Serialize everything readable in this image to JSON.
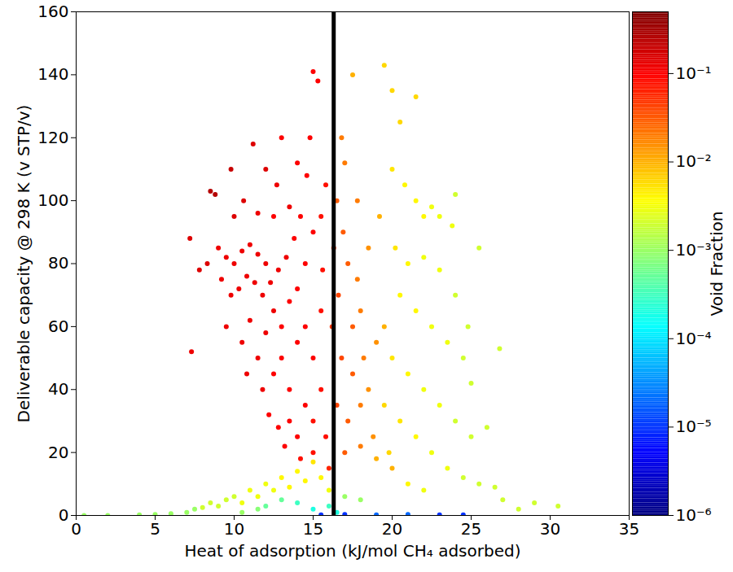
{
  "chart_data": {
    "type": "scatter",
    "x_label": "Heat of adsorption (kJ/mol CH₄ adsorbed)",
    "y_label": "Deliverable capacity @ 298 K (v STP/v)",
    "xlim": [
      0,
      35
    ],
    "xticks": [
      0,
      5,
      10,
      15,
      20,
      25,
      30,
      35
    ],
    "ylim": [
      0,
      160
    ],
    "yticks": [
      0,
      20,
      40,
      60,
      80,
      100,
      120,
      140,
      160
    ],
    "vertical_line": 16.3,
    "x": [
      0.5,
      2,
      4,
      5,
      6,
      7,
      7.5,
      8,
      8.5,
      9,
      9.5,
      10,
      10.5,
      11,
      11.5,
      12,
      12.5,
      13,
      13.5,
      14,
      14.5,
      15,
      15.5,
      16,
      12,
      13,
      14,
      15,
      16,
      16.5,
      17,
      18,
      10.5,
      11.5,
      15.5,
      17,
      19,
      21,
      23,
      24.5,
      19.5,
      20,
      20.5,
      21.5,
      20,
      20.8,
      21.5,
      22,
      22.5,
      23,
      23.8,
      24,
      20.2,
      21,
      22,
      23,
      24,
      20.5,
      21.5,
      22.5,
      23.5,
      24.5,
      20,
      21,
      22,
      23,
      24,
      25,
      19.5,
      20.5,
      21.5,
      22.5,
      23.5,
      24.5,
      25.5,
      26.5,
      27,
      26,
      26.8,
      25,
      24.8,
      25.5,
      19.8,
      21,
      22,
      29,
      30.5,
      28,
      16.5,
      16.8,
      17,
      17.5,
      16.9,
      17.2,
      17.8,
      16.6,
      17.5,
      18,
      16.8,
      17.5,
      18.2,
      16.5,
      17.2,
      18,
      18.5,
      17,
      18,
      18.8,
      19,
      19.5,
      18.5,
      19.2,
      16.2,
      16.3,
      17.8,
      19,
      20,
      8.5,
      8.8,
      7.2,
      7.8,
      7.3,
      8.3,
      9,
      9.5,
      10,
      10.5,
      11,
      11.5,
      12,
      9.2,
      9.8,
      10.3,
      10.8,
      11.3,
      11.8,
      12.3,
      12.8,
      13.3,
      10,
      10.6,
      11.2,
      12,
      12.7,
      13.5,
      14,
      14.6,
      15,
      15.3,
      14.8,
      13,
      15.8,
      9.5,
      10.5,
      11,
      11.5,
      12,
      12.5,
      13,
      13.5,
      14,
      14.5,
      15,
      15.5,
      10.8,
      11.8,
      12.5,
      13,
      13.5,
      14,
      14.5,
      15,
      15.5,
      12.2,
      12.8,
      13.5,
      14,
      14.5,
      15,
      15.5,
      13.2,
      14.2,
      15,
      15.8,
      16,
      12.5,
      13.8,
      9.8,
      11.5,
      14.2,
      15.6
    ],
    "values": [
      0,
      0,
      0.2,
      0.3,
      0.6,
      1,
      2,
      2.5,
      4,
      3,
      5,
      6,
      4,
      8,
      6,
      10,
      8,
      12,
      9,
      14,
      11,
      17,
      12,
      8,
      3,
      5,
      4,
      2,
      3,
      1,
      6,
      5,
      1,
      2,
      0.2,
      0.3,
      0.2,
      0.3,
      0.2,
      0.2,
      143,
      135,
      125,
      133,
      110,
      105,
      100,
      95,
      98,
      95,
      92,
      102,
      85,
      80,
      82,
      78,
      70,
      70,
      65,
      60,
      55,
      50,
      50,
      45,
      40,
      35,
      30,
      25,
      35,
      30,
      25,
      20,
      15,
      12,
      10,
      9,
      5,
      28,
      53,
      42,
      60,
      85,
      20,
      10,
      8,
      4,
      3,
      2,
      100,
      120,
      112,
      140,
      90,
      80,
      75,
      70,
      60,
      65,
      50,
      45,
      50,
      35,
      30,
      35,
      40,
      20,
      22,
      25,
      55,
      60,
      85,
      95,
      60,
      85,
      100,
      18,
      15,
      103,
      102,
      88,
      78,
      52,
      80,
      85,
      82,
      80,
      84,
      86,
      83,
      80,
      75,
      70,
      72,
      76,
      74,
      70,
      74,
      78,
      82,
      95,
      100,
      118,
      110,
      105,
      98,
      112,
      108,
      141,
      138,
      120,
      120,
      105,
      60,
      55,
      62,
      50,
      58,
      65,
      60,
      68,
      72,
      80,
      90,
      95,
      45,
      40,
      45,
      50,
      40,
      55,
      60,
      50,
      65,
      32,
      28,
      30,
      25,
      35,
      30,
      40,
      22,
      18,
      20,
      25,
      15,
      95,
      88,
      110,
      96,
      95,
      78
    ],
    "void_fraction": [
      0.001,
      0.001,
      0.001,
      0.001,
      0.001,
      0.001,
      0.001,
      0.002,
      0.002,
      0.002,
      0.002,
      0.002,
      0.003,
      0.003,
      0.003,
      0.003,
      0.003,
      0.004,
      0.004,
      0.004,
      0.004,
      0.005,
      0.004,
      0.003,
      0.0005,
      0.0005,
      0.0003,
      0.0002,
      0.0003,
      0.0002,
      0.001,
      0.001,
      0.001,
      0.0008,
      1e-05,
      1e-05,
      2e-05,
      2e-05,
      1e-05,
      1e-05,
      0.006,
      0.006,
      0.006,
      0.006,
      0.005,
      0.004,
      0.004,
      0.004,
      0.003,
      0.003,
      0.003,
      0.002,
      0.005,
      0.004,
      0.003,
      0.003,
      0.002,
      0.004,
      0.004,
      0.003,
      0.003,
      0.002,
      0.005,
      0.004,
      0.003,
      0.003,
      0.002,
      0.002,
      0.006,
      0.005,
      0.004,
      0.003,
      0.003,
      0.002,
      0.002,
      0.002,
      0.002,
      0.002,
      0.002,
      0.002,
      0.002,
      0.002,
      0.006,
      0.004,
      0.003,
      0.002,
      0.002,
      0.002,
      0.03,
      0.02,
      0.02,
      0.01,
      0.03,
      0.03,
      0.02,
      0.04,
      0.03,
      0.02,
      0.04,
      0.03,
      0.02,
      0.04,
      0.03,
      0.02,
      0.015,
      0.03,
      0.02,
      0.015,
      0.015,
      0.01,
      0.015,
      0.01,
      0.05,
      0.05,
      0.02,
      0.01,
      0.01,
      0.25,
      0.25,
      0.15,
      0.15,
      0.12,
      0.15,
      0.12,
      0.12,
      0.12,
      0.12,
      0.12,
      0.12,
      0.12,
      0.12,
      0.12,
      0.12,
      0.12,
      0.12,
      0.12,
      0.12,
      0.12,
      0.12,
      0.15,
      0.15,
      0.15,
      0.15,
      0.12,
      0.12,
      0.1,
      0.1,
      0.1,
      0.1,
      0.1,
      0.1,
      0.08,
      0.12,
      0.12,
      0.12,
      0.12,
      0.12,
      0.12,
      0.1,
      0.1,
      0.1,
      0.1,
      0.1,
      0.08,
      0.12,
      0.12,
      0.1,
      0.1,
      0.1,
      0.1,
      0.1,
      0.1,
      0.08,
      0.1,
      0.1,
      0.1,
      0.1,
      0.1,
      0.08,
      0.08,
      0.1,
      0.08,
      0.08,
      0.08,
      0.06,
      0.1,
      0.1,
      0.2,
      0.12,
      0.1,
      0.08
    ],
    "color_bar": {
      "label": "Void Fraction",
      "log": true,
      "range": [
        1e-06,
        0.5
      ],
      "ticks": [
        {
          "value": 1e-06,
          "label": "10⁻⁶"
        },
        {
          "value": 1e-05,
          "label": "10⁻⁵"
        },
        {
          "value": 0.0001,
          "label": "10⁻⁴"
        },
        {
          "value": 0.001,
          "label": "10⁻³"
        },
        {
          "value": 0.01,
          "label": "10⁻²"
        },
        {
          "value": 0.1,
          "label": "10⁻¹"
        }
      ]
    }
  }
}
